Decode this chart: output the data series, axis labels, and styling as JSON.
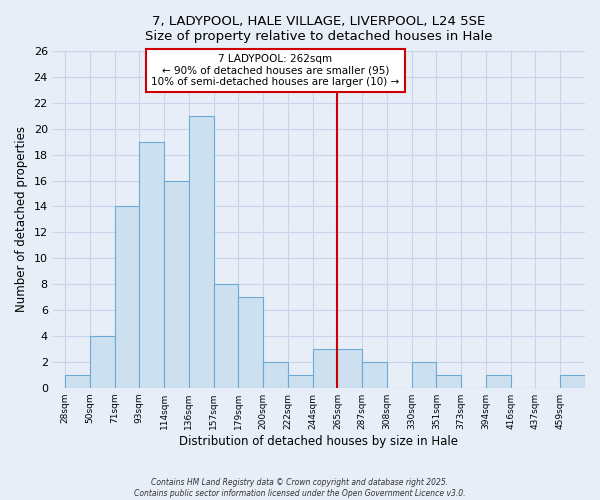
{
  "title": "7, LADYPOOL, HALE VILLAGE, LIVERPOOL, L24 5SE",
  "subtitle": "Size of property relative to detached houses in Hale",
  "xlabel": "Distribution of detached houses by size in Hale",
  "ylabel": "Number of detached properties",
  "bin_labels": [
    "28sqm",
    "50sqm",
    "71sqm",
    "93sqm",
    "114sqm",
    "136sqm",
    "157sqm",
    "179sqm",
    "200sqm",
    "222sqm",
    "244sqm",
    "265sqm",
    "287sqm",
    "308sqm",
    "330sqm",
    "351sqm",
    "373sqm",
    "394sqm",
    "416sqm",
    "437sqm",
    "459sqm"
  ],
  "bar_heights": [
    1,
    4,
    14,
    19,
    16,
    21,
    8,
    7,
    2,
    1,
    3,
    3,
    2,
    0,
    2,
    1,
    0,
    1,
    0,
    0,
    1
  ],
  "bar_color": "#cce0f0",
  "bar_edge_color": "#6aaad4",
  "vline_x_index": 11,
  "vline_color": "#cc0000",
  "annotation_title": "7 LADYPOOL: 262sqm",
  "annotation_line1": "← 90% of detached houses are smaller (95)",
  "annotation_line2": "10% of semi-detached houses are larger (10) →",
  "ylim": [
    0,
    26
  ],
  "yticks": [
    0,
    2,
    4,
    6,
    8,
    10,
    12,
    14,
    16,
    18,
    20,
    22,
    24,
    26
  ],
  "background_color": "#e8eef8",
  "plot_bg_color": "#e8eef8",
  "grid_color": "#c8d4e8",
  "footer_line1": "Contains HM Land Registry data © Crown copyright and database right 2025.",
  "footer_line2": "Contains public sector information licensed under the Open Government Licence v3.0."
}
